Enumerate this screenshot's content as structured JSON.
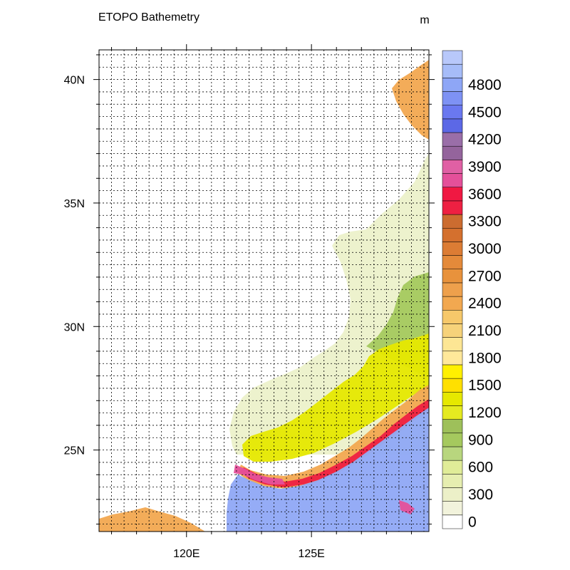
{
  "chart_data": {
    "type": "heatmap",
    "title": "ETOPO Bathemetry",
    "units_label": "m",
    "map_extent": {
      "lon": [
        116.5,
        129.7
      ],
      "lat": [
        21.7,
        41.2
      ]
    },
    "x_ticks": [
      {
        "value": 120,
        "label": "120E"
      },
      {
        "value": 125,
        "label": "125E"
      }
    ],
    "y_ticks": [
      {
        "value": 25,
        "label": "25N"
      },
      {
        "value": 30,
        "label": "30N"
      },
      {
        "value": 35,
        "label": "35N"
      },
      {
        "value": 40,
        "label": "40N"
      }
    ],
    "grid": true,
    "colorbar": {
      "placement": "right",
      "levels": [
        0,
        150,
        300,
        450,
        600,
        750,
        900,
        1050,
        1200,
        1350,
        1500,
        1650,
        1800,
        1950,
        2100,
        2250,
        2400,
        2550,
        2700,
        2850,
        3000,
        3150,
        3300,
        3450,
        3600,
        3750,
        3900,
        4050,
        4200,
        4350,
        4500,
        4650,
        4800,
        4950
      ],
      "labels": [
        "0",
        "300",
        "600",
        "900",
        "1200",
        "1500",
        "1800",
        "2100",
        "2400",
        "2700",
        "3000",
        "3300",
        "3600",
        "3900",
        "4200",
        "4500",
        "4800"
      ],
      "colors": [
        "#ffffff",
        "#f2f3dc",
        "#ecf0c8",
        "#e6eeb0",
        "#e0ec98",
        "#b8d67e",
        "#a5c95e",
        "#9ec05a",
        "#e5ea20",
        "#e6e800",
        "#ffe000",
        "#fff000",
        "#ffe89a",
        "#fde694",
        "#f6d27a",
        "#f6c86a",
        "#f2a850",
        "#eea04c",
        "#e8923c",
        "#e48a3a",
        "#dc7c34",
        "#d4702e",
        "#cc6c30",
        "#ee2042",
        "#f01842",
        "#e4509a",
        "#e060a4",
        "#94649c",
        "#9a6ea8",
        "#5c68e6",
        "#6a78f0",
        "#7e92f4",
        "#8ea6f6",
        "#a6bcf8",
        "#b8c8fa"
      ]
    },
    "regions": [
      {
        "name": "deep",
        "color": "#8fa8f6"
      },
      {
        "name": "slope",
        "color": "#f2a850"
      },
      {
        "name": "red-band",
        "color": "#ee2042"
      },
      {
        "name": "magenta-band",
        "color": "#e4509a"
      },
      {
        "name": "shelf-yellow",
        "color": "#e6e800"
      },
      {
        "name": "shelf-green",
        "color": "#a5c95e"
      },
      {
        "name": "shelf-pale",
        "color": "#eaf0c4"
      }
    ]
  }
}
